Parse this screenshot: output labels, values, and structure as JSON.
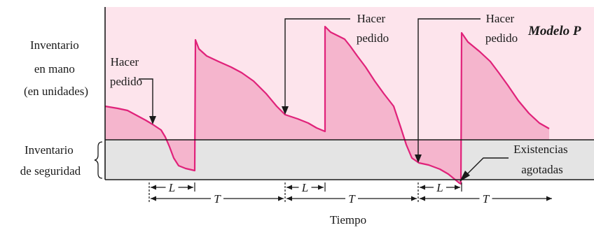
{
  "title": "Modelo P",
  "y_label": [
    "Inventario",
    "en mano",
    "(en unidades)"
  ],
  "safety_label": [
    "Inventario",
    "de seguridad"
  ],
  "x_label": "Tiempo",
  "order_labels": [
    [
      "Hacer",
      "pedido"
    ],
    [
      "Hacer",
      "pedido"
    ],
    [
      "Hacer",
      "pedido"
    ]
  ],
  "stockout_label": [
    "Existencias",
    "agotadas"
  ],
  "interval_labels": {
    "lead_time": "L",
    "period": "T"
  },
  "colors": {
    "plot_bg": "#fde4ec",
    "safety_band": "#e4e4e4",
    "area_fill": "#f5b5cd",
    "line": "#e0227a",
    "ink": "#1a1a1a"
  }
}
